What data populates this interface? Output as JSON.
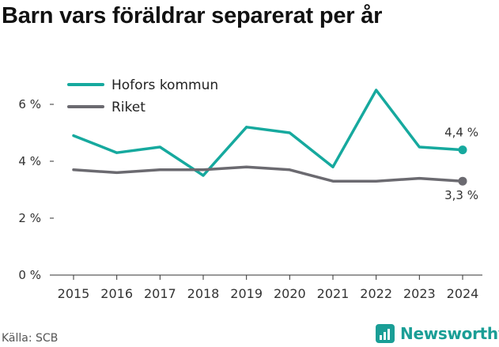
{
  "title": "Barn vars föräldrar separerat per år",
  "source": "Källa: SCB",
  "brand": {
    "name": "Newsworthy",
    "icon": "newsworthy-logo-icon",
    "color": "#1a9e96"
  },
  "chart_data": {
    "type": "line",
    "title": "Barn vars föräldrar separerat per år",
    "xlabel": "",
    "ylabel": "",
    "x": [
      2015,
      2016,
      2017,
      2018,
      2019,
      2020,
      2021,
      2022,
      2023,
      2024
    ],
    "ylim": [
      0,
      7.5
    ],
    "yticks": [
      0,
      2,
      4,
      6
    ],
    "ytick_labels": [
      "0 %",
      "2 %",
      "4 %",
      "6 %"
    ],
    "grid": false,
    "legend_position": "top-left",
    "series": [
      {
        "name": "Hofors kommun",
        "color": "#16a99e",
        "values": [
          4.9,
          4.3,
          4.5,
          3.5,
          5.2,
          5.0,
          3.8,
          6.5,
          4.5,
          4.4
        ],
        "end_label": "4,4 %"
      },
      {
        "name": "Riket",
        "color": "#6b6a70",
        "values": [
          3.7,
          3.6,
          3.7,
          3.7,
          3.8,
          3.7,
          3.3,
          3.3,
          3.4,
          3.3
        ],
        "end_label": "3,3 %"
      }
    ]
  }
}
